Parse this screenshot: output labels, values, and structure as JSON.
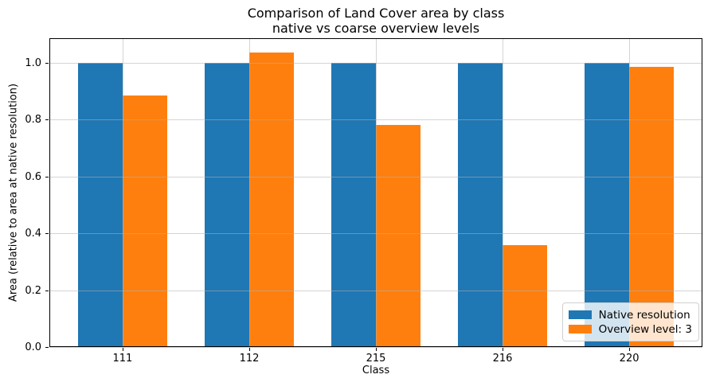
{
  "chart_data": {
    "type": "bar",
    "title": "Comparison of Land Cover area by class",
    "subtitle": "native vs coarse overview levels",
    "xlabel": "Class",
    "ylabel": "Area (relative to area at native resolution)",
    "categories": [
      "111",
      "112",
      "215",
      "216",
      "220"
    ],
    "series": [
      {
        "name": "Native resolution",
        "color": "#1f77b4",
        "values": [
          1.0,
          1.0,
          1.0,
          1.0,
          1.0
        ]
      },
      {
        "name": "Overview level: 3",
        "color": "#ff7f0e",
        "values": [
          0.886,
          1.038,
          0.783,
          0.36,
          0.986
        ]
      }
    ],
    "yticks": [
      0.0,
      0.2,
      0.4,
      0.6,
      0.8,
      1.0
    ],
    "ylim": [
      0,
      1.087
    ],
    "xlim": [
      -0.578,
      4.578
    ],
    "bar_width": 0.35,
    "grid": true,
    "grid_color": "#b0b0b0",
    "legend_position": "lower right",
    "background_color": "#ffffff",
    "spine_color": "#000000"
  }
}
